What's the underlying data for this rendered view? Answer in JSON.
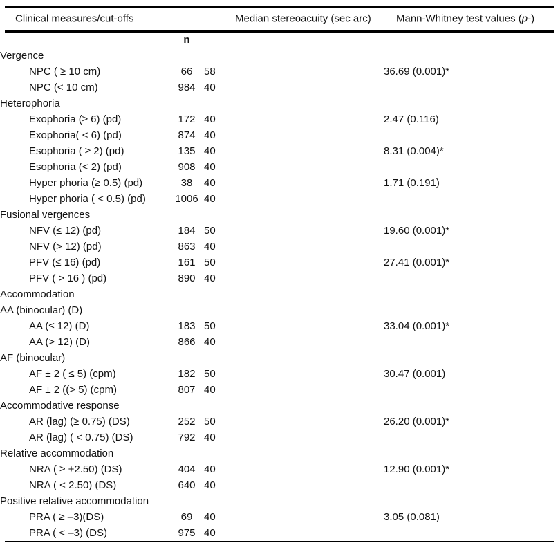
{
  "colors": {
    "background": "#ffffff",
    "text": "#111111",
    "rule": "#000000"
  },
  "table": {
    "header": {
      "col_measures": "Clinical measures/cut-offs",
      "col_median": "Median stereoacuity (sec arc)",
      "col_mw_prefix": "Mann-Whitney test values (",
      "col_mw_italic": "p",
      "col_mw_suffix": "-)"
    },
    "subheader_n": "n",
    "rows": [
      {
        "label": "Vergence",
        "indent": false,
        "n": "",
        "median": "",
        "p": ""
      },
      {
        "label": "NPC ( ≥ 10 cm)",
        "indent": true,
        "n": "66",
        "median": "58",
        "p": "36.69 (0.001)*"
      },
      {
        "label": "NPC (< 10 cm)",
        "indent": true,
        "n": "984",
        "median": "40",
        "p": ""
      },
      {
        "label": "Heterophoria",
        "indent": false,
        "n": "",
        "median": "",
        "p": ""
      },
      {
        "label": "Exophoria (≥ 6) (pd)",
        "indent": true,
        "n": "172",
        "median": "40",
        "p": "2.47 (0.116)"
      },
      {
        "label": "Exophoria( < 6) (pd)",
        "indent": true,
        "n": "874",
        "median": "40",
        "p": ""
      },
      {
        "label": "Esophoria ( ≥ 2) (pd)",
        "indent": true,
        "n": "135",
        "median": "40",
        "p": "8.31 (0.004)*"
      },
      {
        "label": "Esophoria (< 2) (pd)",
        "indent": true,
        "n": "908",
        "median": "40",
        "p": ""
      },
      {
        "label": "Hyper phoria (≥ 0.5) (pd)",
        "indent": true,
        "n": "38",
        "median": "40",
        "p": "1.71 (0.191)"
      },
      {
        "label": "Hyper phoria ( < 0.5) (pd)",
        "indent": true,
        "n": "1006",
        "median": "40",
        "p": ""
      },
      {
        "label": "Fusional vergences",
        "indent": false,
        "n": "",
        "median": "",
        "p": ""
      },
      {
        "label": "NFV (≤ 12) (pd)",
        "indent": true,
        "n": "184",
        "median": "50",
        "p": "19.60 (0.001)*"
      },
      {
        "label": "NFV (> 12) (pd)",
        "indent": true,
        "n": "863",
        "median": "40",
        "p": ""
      },
      {
        "label": "PFV (≤ 16) (pd)",
        "indent": true,
        "n": "161",
        "median": "50",
        "p": "27.41 (0.001)*"
      },
      {
        "label": "PFV ( > 16 ) (pd)",
        "indent": true,
        "n": "890",
        "median": "40",
        "p": ""
      },
      {
        "label": "Accommodation",
        "indent": false,
        "n": "",
        "median": "",
        "p": ""
      },
      {
        "label": "AA (binocular) (D)",
        "indent": false,
        "n": "",
        "median": "",
        "p": ""
      },
      {
        "label": "AA (≤ 12) (D)",
        "indent": true,
        "n": "183",
        "median": "50",
        "p": "33.04 (0.001)*"
      },
      {
        "label": "AA (> 12) (D)",
        "indent": true,
        "n": "866",
        "median": "40",
        "p": ""
      },
      {
        "label": "AF (binocular)",
        "indent": false,
        "n": "",
        "median": "",
        "p": ""
      },
      {
        "label": "AF ± 2 ( ≤ 5) (cpm)",
        "indent": true,
        "n": "182",
        "median": "50",
        "p": "30.47 (0.001)"
      },
      {
        "label": "AF ± 2 ((> 5) (cpm)",
        "indent": true,
        "n": "807",
        "median": "40",
        "p": ""
      },
      {
        "label": "Accommodative response",
        "indent": false,
        "n": "",
        "median": "",
        "p": ""
      },
      {
        "label": "AR (lag) (≥ 0.75) (DS)",
        "indent": true,
        "n": "252",
        "median": "50",
        "p": "26.20 (0.001)*"
      },
      {
        "label": "AR (lag) ( < 0.75) (DS)",
        "indent": true,
        "n": "792",
        "median": "40",
        "p": ""
      },
      {
        "label": "Relative accommodation",
        "indent": false,
        "n": "",
        "median": "",
        "p": ""
      },
      {
        "label": "NRA ( ≥ +2.50) (DS)",
        "indent": true,
        "n": "404",
        "median": "40",
        "p": "12.90 (0.001)*"
      },
      {
        "label": "NRA ( < 2.50) (DS)",
        "indent": true,
        "n": "640",
        "median": "40",
        "p": ""
      },
      {
        "label": "Positive relative accommodation",
        "indent": false,
        "n": "",
        "median": "",
        "p": ""
      },
      {
        "label": "PRA ( ≥ –3)(DS)",
        "indent": true,
        "n": "69",
        "median": "40",
        "p": "3.05 (0.081)"
      },
      {
        "label": "PRA ( < –3) (DS)",
        "indent": true,
        "n": "975",
        "median": "40",
        "p": ""
      }
    ]
  }
}
